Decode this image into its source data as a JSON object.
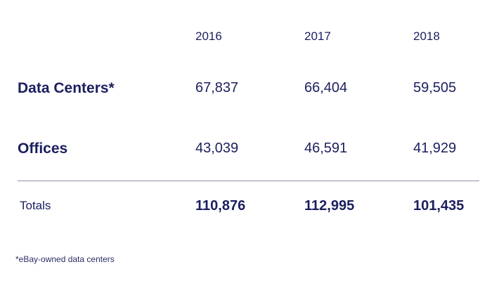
{
  "table": {
    "header": [
      "2016",
      "2017",
      "2018"
    ],
    "rows": [
      [
        "Data Centers*",
        "67,837",
        "66,404",
        "59,505"
      ],
      [
        "Offices",
        "43,039",
        "46,591",
        "41,929"
      ]
    ],
    "totals": [
      "Totals",
      "110,876",
      "112,995",
      "101,435"
    ]
  },
  "footnote": "*eBay-owned data centers"
}
